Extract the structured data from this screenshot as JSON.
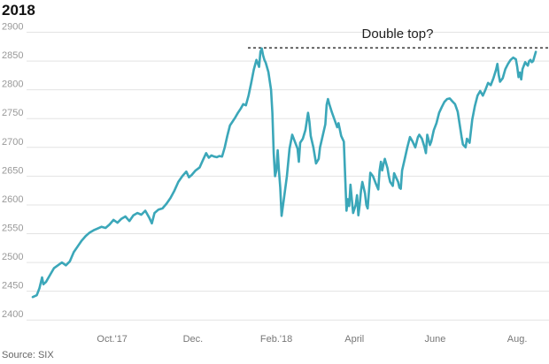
{
  "title": "2018",
  "source": "Source: SIX",
  "chart_data": {
    "type": "line",
    "title": "2018",
    "xlabel": "",
    "ylabel": "",
    "ylim": [
      2385,
      2910
    ],
    "y_ticks": [
      2400,
      2450,
      2500,
      2550,
      2600,
      2650,
      2700,
      2750,
      2800,
      2850,
      2900
    ],
    "x_ticks": [
      {
        "label": "Oct.'17",
        "x": 60
      },
      {
        "label": "Dec.",
        "x": 121
      },
      {
        "label": "Feb.'18",
        "x": 184
      },
      {
        "label": "April",
        "x": 243
      },
      {
        "label": "June",
        "x": 304
      },
      {
        "label": "Aug.",
        "x": 366
      }
    ],
    "xlim": [
      0,
      390
    ],
    "grid": true,
    "line_color": "#3ba7b9",
    "annotation": {
      "text": "Double top?",
      "y": 2873
    },
    "series": [
      {
        "name": "",
        "points": [
          [
            0,
            2440
          ],
          [
            3,
            2443
          ],
          [
            5,
            2455
          ],
          [
            7,
            2474
          ],
          [
            8,
            2462
          ],
          [
            10,
            2466
          ],
          [
            13,
            2478
          ],
          [
            16,
            2490
          ],
          [
            19,
            2495
          ],
          [
            22,
            2500
          ],
          [
            25,
            2495
          ],
          [
            28,
            2502
          ],
          [
            31,
            2518
          ],
          [
            34,
            2528
          ],
          [
            37,
            2538
          ],
          [
            40,
            2546
          ],
          [
            43,
            2552
          ],
          [
            46,
            2556
          ],
          [
            49,
            2559
          ],
          [
            52,
            2562
          ],
          [
            55,
            2560
          ],
          [
            58,
            2566
          ],
          [
            61,
            2574
          ],
          [
            64,
            2569
          ],
          [
            67,
            2576
          ],
          [
            70,
            2580
          ],
          [
            73,
            2572
          ],
          [
            76,
            2582
          ],
          [
            79,
            2586
          ],
          [
            82,
            2583
          ],
          [
            85,
            2590
          ],
          [
            88,
            2578
          ],
          [
            90,
            2568
          ],
          [
            92,
            2586
          ],
          [
            95,
            2592
          ],
          [
            98,
            2594
          ],
          [
            101,
            2602
          ],
          [
            104,
            2612
          ],
          [
            107,
            2625
          ],
          [
            110,
            2640
          ],
          [
            113,
            2650
          ],
          [
            116,
            2658
          ],
          [
            118,
            2648
          ],
          [
            120,
            2652
          ],
          [
            123,
            2660
          ],
          [
            126,
            2665
          ],
          [
            129,
            2680
          ],
          [
            131,
            2690
          ],
          [
            133,
            2682
          ],
          [
            135,
            2686
          ],
          [
            137,
            2684
          ],
          [
            139,
            2683
          ],
          [
            141,
            2685
          ],
          [
            143,
            2684
          ],
          [
            145,
            2700
          ],
          [
            147,
            2720
          ],
          [
            149,
            2738
          ],
          [
            151,
            2745
          ],
          [
            153,
            2752
          ],
          [
            155,
            2760
          ],
          [
            157,
            2767
          ],
          [
            159,
            2775
          ],
          [
            161,
            2773
          ],
          [
            163,
            2790
          ],
          [
            165,
            2812
          ],
          [
            167,
            2835
          ],
          [
            169,
            2852
          ],
          [
            171,
            2840
          ],
          [
            172,
            2866
          ],
          [
            173,
            2872
          ],
          [
            174,
            2860
          ],
          [
            175,
            2852
          ],
          [
            176,
            2847
          ],
          [
            178,
            2831
          ],
          [
            180,
            2800
          ],
          [
            181,
            2760
          ],
          [
            182,
            2690
          ],
          [
            183,
            2650
          ],
          [
            184,
            2660
          ],
          [
            185,
            2695
          ],
          [
            186,
            2660
          ],
          [
            187,
            2630
          ],
          [
            188,
            2581
          ],
          [
            190,
            2615
          ],
          [
            192,
            2650
          ],
          [
            194,
            2698
          ],
          [
            196,
            2722
          ],
          [
            198,
            2710
          ],
          [
            200,
            2698
          ],
          [
            201,
            2675
          ],
          [
            202,
            2708
          ],
          [
            204,
            2715
          ],
          [
            206,
            2730
          ],
          [
            208,
            2760
          ],
          [
            209,
            2745
          ],
          [
            210,
            2720
          ],
          [
            212,
            2700
          ],
          [
            214,
            2672
          ],
          [
            216,
            2680
          ],
          [
            217,
            2700
          ],
          [
            219,
            2720
          ],
          [
            221,
            2740
          ],
          [
            222,
            2774
          ],
          [
            223,
            2784
          ],
          [
            224,
            2775
          ],
          [
            226,
            2761
          ],
          [
            228,
            2748
          ],
          [
            230,
            2735
          ],
          [
            231,
            2742
          ],
          [
            233,
            2720
          ],
          [
            235,
            2710
          ],
          [
            236,
            2650
          ],
          [
            237,
            2590
          ],
          [
            238,
            2610
          ],
          [
            239,
            2598
          ],
          [
            240,
            2635
          ],
          [
            241,
            2610
          ],
          [
            242,
            2586
          ],
          [
            244,
            2600
          ],
          [
            245,
            2617
          ],
          [
            246,
            2582
          ],
          [
            247,
            2600
          ],
          [
            248,
            2625
          ],
          [
            249,
            2640
          ],
          [
            251,
            2620
          ],
          [
            252,
            2600
          ],
          [
            253,
            2594
          ],
          [
            254,
            2624
          ],
          [
            255,
            2656
          ],
          [
            257,
            2650
          ],
          [
            259,
            2638
          ],
          [
            261,
            2627
          ],
          [
            262,
            2660
          ],
          [
            263,
            2675
          ],
          [
            264,
            2660
          ],
          [
            265,
            2671
          ],
          [
            266,
            2680
          ],
          [
            268,
            2664
          ],
          [
            269,
            2650
          ],
          [
            270,
            2640
          ],
          [
            272,
            2633
          ],
          [
            273,
            2655
          ],
          [
            274,
            2650
          ],
          [
            276,
            2640
          ],
          [
            277,
            2630
          ],
          [
            278,
            2628
          ],
          [
            279,
            2660
          ],
          [
            281,
            2680
          ],
          [
            283,
            2700
          ],
          [
            285,
            2718
          ],
          [
            287,
            2710
          ],
          [
            289,
            2700
          ],
          [
            291,
            2718
          ],
          [
            292,
            2722
          ],
          [
            294,
            2715
          ],
          [
            296,
            2700
          ],
          [
            297,
            2690
          ],
          [
            298,
            2722
          ],
          [
            300,
            2704
          ],
          [
            301,
            2710
          ],
          [
            303,
            2730
          ],
          [
            305,
            2742
          ],
          [
            307,
            2760
          ],
          [
            309,
            2770
          ],
          [
            311,
            2779
          ],
          [
            313,
            2784
          ],
          [
            315,
            2785
          ],
          [
            317,
            2780
          ],
          [
            319,
            2775
          ],
          [
            321,
            2762
          ],
          [
            322,
            2748
          ],
          [
            323,
            2733
          ],
          [
            324,
            2718
          ],
          [
            325,
            2705
          ],
          [
            327,
            2700
          ],
          [
            328,
            2715
          ],
          [
            330,
            2708
          ],
          [
            332,
            2748
          ],
          [
            334,
            2772
          ],
          [
            336,
            2790
          ],
          [
            338,
            2798
          ],
          [
            340,
            2790
          ],
          [
            342,
            2800
          ],
          [
            344,
            2812
          ],
          [
            346,
            2808
          ],
          [
            348,
            2820
          ],
          [
            350,
            2835
          ],
          [
            351,
            2845
          ],
          [
            352,
            2826
          ],
          [
            353,
            2814
          ],
          [
            355,
            2820
          ],
          [
            357,
            2836
          ],
          [
            359,
            2845
          ],
          [
            361,
            2852
          ],
          [
            363,
            2856
          ],
          [
            365,
            2853
          ],
          [
            366,
            2840
          ],
          [
            367,
            2822
          ],
          [
            368,
            2830
          ],
          [
            369,
            2818
          ],
          [
            370,
            2836
          ],
          [
            372,
            2848
          ],
          [
            374,
            2842
          ],
          [
            375,
            2850
          ],
          [
            376,
            2852
          ],
          [
            377,
            2848
          ],
          [
            378,
            2850
          ],
          [
            379,
            2858
          ],
          [
            380,
            2866
          ]
        ]
      }
    ]
  }
}
